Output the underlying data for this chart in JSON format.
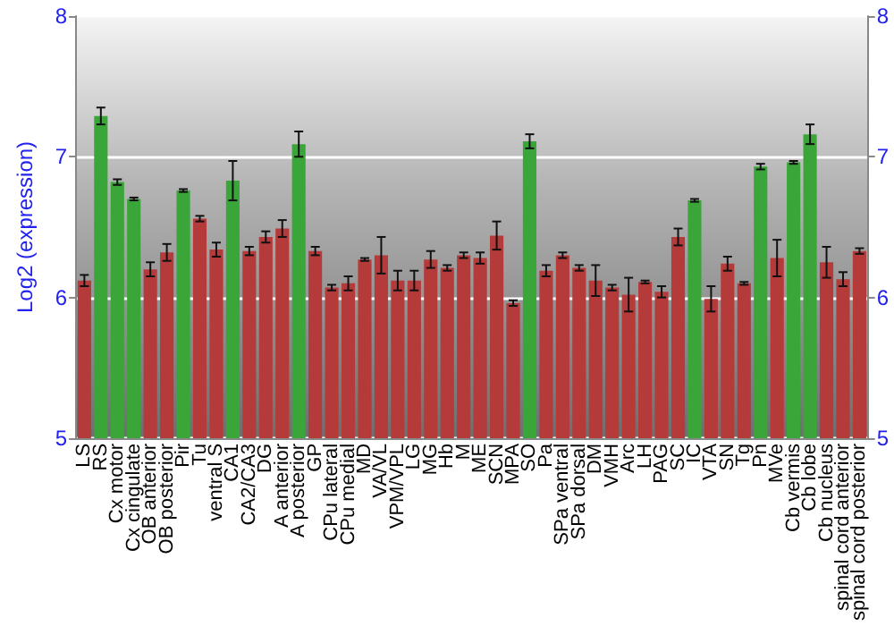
{
  "chart_data": {
    "type": "bar",
    "ylabel": "Log2 (expression)",
    "categories": [
      "LS",
      "RS",
      "Cx motor",
      "Cx cingulate",
      "OB anterior",
      "OB posterior",
      "Pir",
      "Tu",
      "ventral S",
      "CA1",
      "CA2/CA3",
      "DG",
      "A anterior",
      "A posterior",
      "GP",
      "CPu lateral",
      "CPu medial",
      "MD",
      "VA/VL",
      "VPM/VPL",
      "LG",
      "MG",
      "Hb",
      "M",
      "ME",
      "SCN",
      "MPA",
      "SO",
      "Pa",
      "SPa ventral",
      "SPa dorsal",
      "DM",
      "VMH",
      "Arc",
      "LH",
      "PAG",
      "SC",
      "IC",
      "VTA",
      "SN",
      "Tg",
      "Pn",
      "MVe",
      "Cb vermis",
      "Cb lobe",
      "Cb nucleus",
      "spinal cord anterior",
      "spinal cord posterior"
    ],
    "values": [
      6.12,
      7.29,
      6.82,
      6.7,
      6.2,
      6.32,
      6.76,
      6.56,
      6.34,
      6.83,
      6.33,
      6.43,
      6.49,
      7.09,
      6.33,
      6.07,
      6.1,
      6.27,
      6.3,
      6.12,
      6.12,
      6.27,
      6.21,
      6.3,
      6.28,
      6.44,
      5.96,
      7.11,
      6.19,
      6.3,
      6.21,
      6.12,
      6.07,
      6.02,
      6.11,
      6.04,
      6.43,
      6.69,
      5.99,
      6.24,
      6.1,
      6.93,
      6.28,
      6.96,
      7.16,
      6.25,
      6.13,
      6.33
    ],
    "errors": [
      0.04,
      0.06,
      0.02,
      0.01,
      0.05,
      0.06,
      0.01,
      0.02,
      0.05,
      0.14,
      0.03,
      0.04,
      0.06,
      0.09,
      0.03,
      0.02,
      0.05,
      0.01,
      0.13,
      0.07,
      0.07,
      0.06,
      0.02,
      0.02,
      0.04,
      0.1,
      0.02,
      0.05,
      0.04,
      0.02,
      0.02,
      0.11,
      0.02,
      0.12,
      0.01,
      0.04,
      0.06,
      0.01,
      0.09,
      0.05,
      0.01,
      0.02,
      0.13,
      0.01,
      0.07,
      0.11,
      0.05,
      0.02
    ],
    "colors": [
      "#b53a3a",
      "#3aa63a",
      "#3aa63a",
      "#3aa63a",
      "#b53a3a",
      "#b53a3a",
      "#3aa63a",
      "#b53a3a",
      "#b53a3a",
      "#3aa63a",
      "#b53a3a",
      "#b53a3a",
      "#b53a3a",
      "#3aa63a",
      "#b53a3a",
      "#b53a3a",
      "#b53a3a",
      "#b53a3a",
      "#b53a3a",
      "#b53a3a",
      "#b53a3a",
      "#b53a3a",
      "#b53a3a",
      "#b53a3a",
      "#b53a3a",
      "#b53a3a",
      "#b53a3a",
      "#3aa63a",
      "#b53a3a",
      "#b53a3a",
      "#b53a3a",
      "#b53a3a",
      "#b53a3a",
      "#b53a3a",
      "#b53a3a",
      "#b53a3a",
      "#b53a3a",
      "#3aa63a",
      "#b53a3a",
      "#b53a3a",
      "#b53a3a",
      "#3aa63a",
      "#b53a3a",
      "#3aa63a",
      "#3aa63a",
      "#b53a3a",
      "#b53a3a",
      "#b53a3a"
    ],
    "ylim": [
      5,
      8
    ],
    "yticks": [
      5,
      6,
      7,
      8
    ],
    "y2lim": [
      5,
      8
    ],
    "y2ticks": [
      5,
      6,
      7,
      8
    ],
    "grid": "y"
  }
}
